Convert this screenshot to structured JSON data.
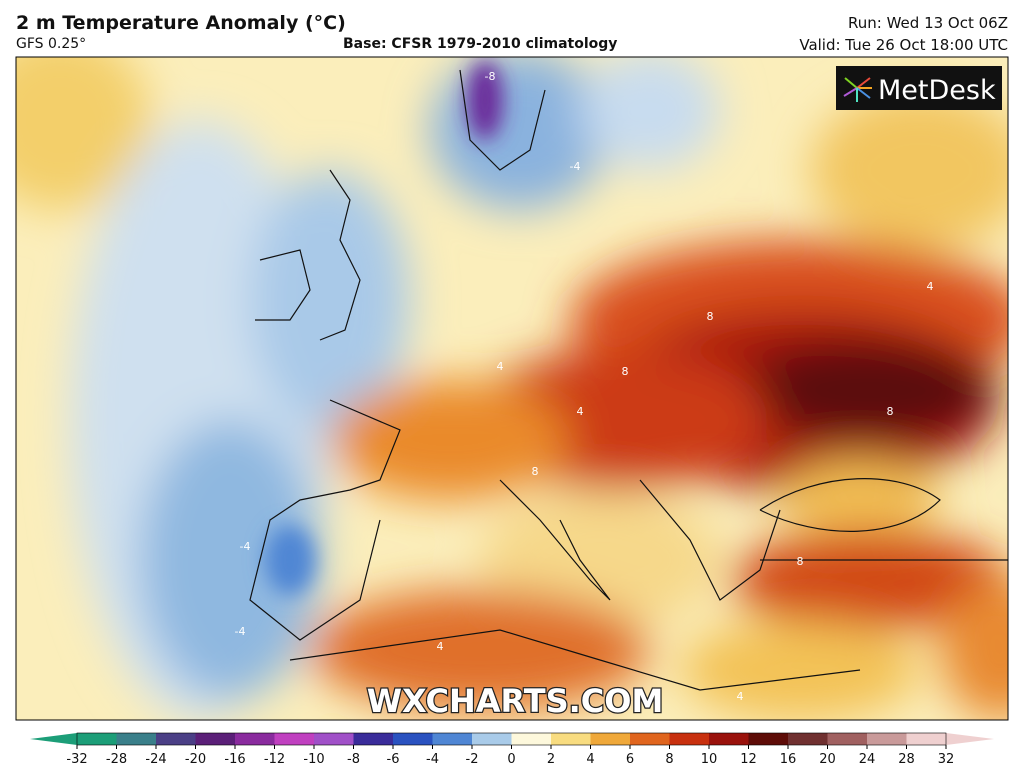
{
  "header": {
    "title": "2 m Temperature Anomaly (°C)",
    "model": "GFS 0.25°",
    "base": "Base: CFSR 1979-2010 climatology",
    "run": "Run: Wed 13 Oct 06Z",
    "valid": "Valid: Tue 26 Oct 18:00 UTC"
  },
  "logo": "MetDesk",
  "watermark": "WXCHARTS.COM",
  "contour_labels": [
    "-8",
    "-4",
    "-4",
    "4",
    "4",
    "8",
    "8",
    "8",
    "8",
    "4",
    "-4",
    "4",
    "8",
    "4"
  ],
  "colorbar": {
    "ticks": [
      -32,
      -28,
      -24,
      -20,
      -16,
      -12,
      -10,
      -8,
      -6,
      -4,
      -2,
      0,
      2,
      4,
      6,
      8,
      10,
      12,
      16,
      20,
      24,
      28,
      32
    ],
    "colors": [
      "#1c9e78",
      "#3a7f8a",
      "#4b3f86",
      "#5b1f78",
      "#8a2b9e",
      "#c040c0",
      "#a050c8",
      "#3a2c9a",
      "#2a52c0",
      "#4f86d4",
      "#a9cbe9",
      "#fdf8dc",
      "#f8dc80",
      "#efa83a",
      "#e0651e",
      "#c8300f",
      "#9a120c",
      "#5e0c08",
      "#703030",
      "#a06060",
      "#c99a9a",
      "#efd0d0"
    ]
  }
}
